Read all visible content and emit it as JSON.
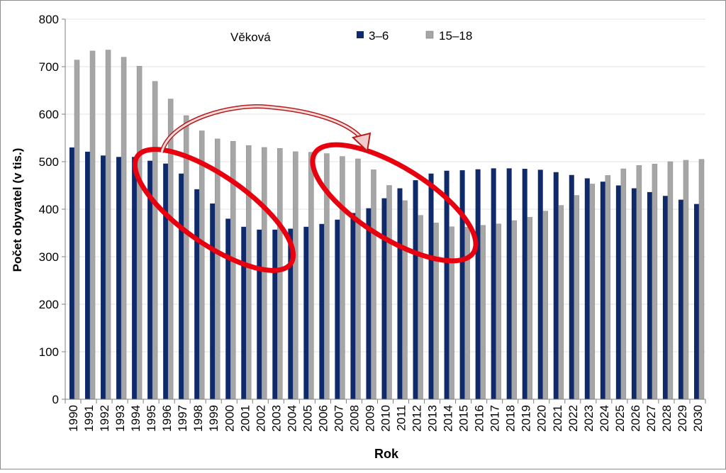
{
  "chart_data": {
    "type": "bar",
    "title": "",
    "xlabel": "Rok",
    "ylabel": "Počet obyvatel (v tis.)",
    "ylim": [
      0,
      800
    ],
    "yticks": [
      0,
      100,
      200,
      300,
      400,
      500,
      600,
      700,
      800
    ],
    "grid": true,
    "legend": {
      "title": "Věková",
      "placement": "top"
    },
    "categories": [
      "1990",
      "1991",
      "1992",
      "1993",
      "1994",
      "1995",
      "1996",
      "1997",
      "1998",
      "1999",
      "2000",
      "2001",
      "2002",
      "2003",
      "2004",
      "2005",
      "2006",
      "2007",
      "2008",
      "2009",
      "2010",
      "2011",
      "2012",
      "2013",
      "2014",
      "2015",
      "2016",
      "2017",
      "2018",
      "2019",
      "2020",
      "2021",
      "2022",
      "2023",
      "2024",
      "2025",
      "2026",
      "2027",
      "2028",
      "2029",
      "2030"
    ],
    "series": [
      {
        "name": "3–6",
        "color": "#0f2a6b",
        "values": [
          530,
          521,
          513,
          510,
          510,
          502,
          496,
          475,
          442,
          412,
          380,
          363,
          357,
          357,
          359,
          363,
          369,
          378,
          392,
          402,
          423,
          444,
          461,
          475,
          481,
          482,
          484,
          486,
          486,
          485,
          483,
          478,
          472,
          465,
          458,
          450,
          444,
          436,
          428,
          420,
          411
        ]
      },
      {
        "name": "15–18",
        "color": "#a6a6a6",
        "values": [
          714,
          733,
          735,
          720,
          701,
          669,
          632,
          597,
          565,
          548,
          543,
          534,
          530,
          528,
          521,
          520,
          517,
          511,
          506,
          483,
          450,
          418,
          387,
          371,
          363,
          362,
          366,
          369,
          376,
          383,
          396,
          408,
          429,
          453,
          471,
          485,
          492,
          495,
          500,
          503,
          505
        ]
      }
    ],
    "annotations": {
      "ellipses": 2,
      "arrow": "from first highlighted group to second",
      "highlight_color": "#e8000f"
    }
  }
}
